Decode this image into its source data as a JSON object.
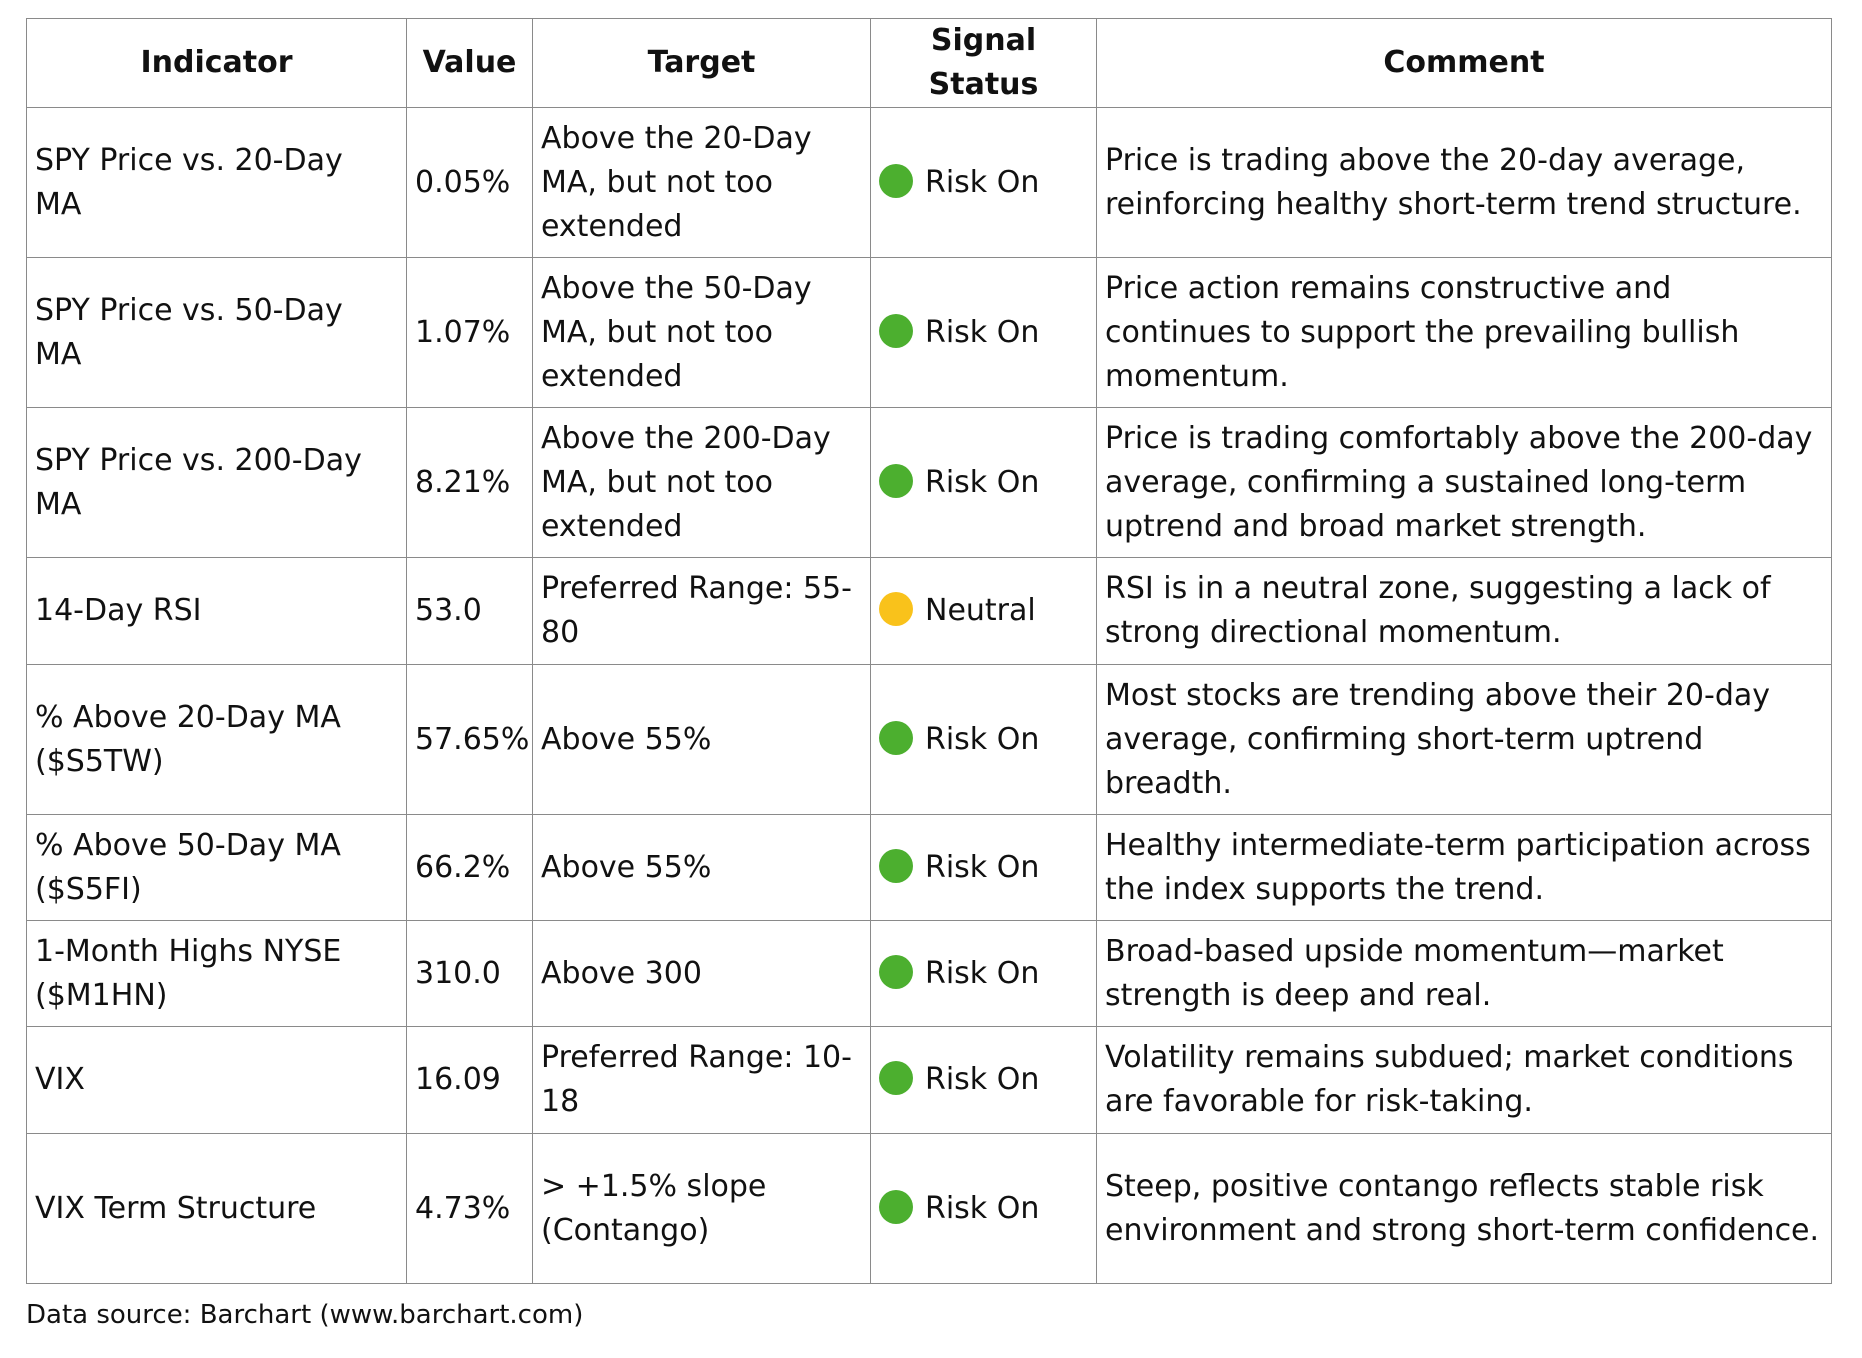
{
  "table": {
    "header": [
      "Indicator",
      "Value",
      "Target",
      "Signal Status",
      "Comment"
    ],
    "rows": [
      {
        "cells": [
          "SPY Price vs. 20-Day MA",
          "0.05%",
          "Above the 20-Day MA, but not too extended",
          "Risk On",
          "Price is trading above the 20-day average, reinforcing healthy short-term trend structure."
        ],
        "signal_color": "#4caf2f"
      },
      {
        "cells": [
          "SPY Price vs. 50-Day MA",
          "1.07%",
          "Above the 50-Day MA, but not too extended",
          "Risk On",
          "Price action remains constructive and continues to support the prevailing bullish momentum."
        ],
        "signal_color": "#4caf2f"
      },
      {
        "cells": [
          "SPY Price vs. 200-Day MA",
          "8.21%",
          "Above the 200-Day MA, but not too extended",
          "Risk On",
          "Price is trading comfortably above the 200-day average, confirming a sustained long-term uptrend and broad market strength."
        ],
        "signal_color": "#4caf2f"
      },
      {
        "cells": [
          "14-Day RSI",
          "53.0",
          "Preferred Range: 55-80",
          "Neutral",
          "RSI is in a neutral zone, suggesting a lack of strong directional momentum."
        ],
        "signal_color": "#f9c21b"
      },
      {
        "cells": [
          "% Above 20-Day MA ($S5TW)",
          "57.65%",
          "Above 55%",
          "Risk On",
          "Most stocks are trending above their 20-day average, confirming short-term uptrend breadth."
        ],
        "signal_color": "#4caf2f"
      },
      {
        "cells": [
          "% Above 50-Day MA ($S5FI)",
          "66.2%",
          "Above 55%",
          "Risk On",
          "Healthy intermediate-term participation across the index supports the trend."
        ],
        "signal_color": "#4caf2f"
      },
      {
        "cells": [
          "1-Month Highs NYSE ($M1HN)",
          "310.0",
          "Above 300",
          "Risk On",
          "Broad-based upside momentum—market strength is deep and real."
        ],
        "signal_color": "#4caf2f"
      },
      {
        "cells": [
          "VIX",
          "16.09",
          "Preferred Range: 10-18",
          "Risk On",
          "Volatility remains subdued; market conditions are favorable for risk-taking."
        ],
        "signal_color": "#4caf2f"
      },
      {
        "cells": [
          "VIX Term Structure",
          "4.73%",
          "> +1.5% slope (Contango)",
          "Risk On",
          "Steep, positive contango reflects stable risk environment and strong short-term confidence."
        ],
        "signal_color": "#4caf2f"
      }
    ]
  },
  "footer": {
    "source": "Data source: Barchart (www.barchart.com)"
  }
}
